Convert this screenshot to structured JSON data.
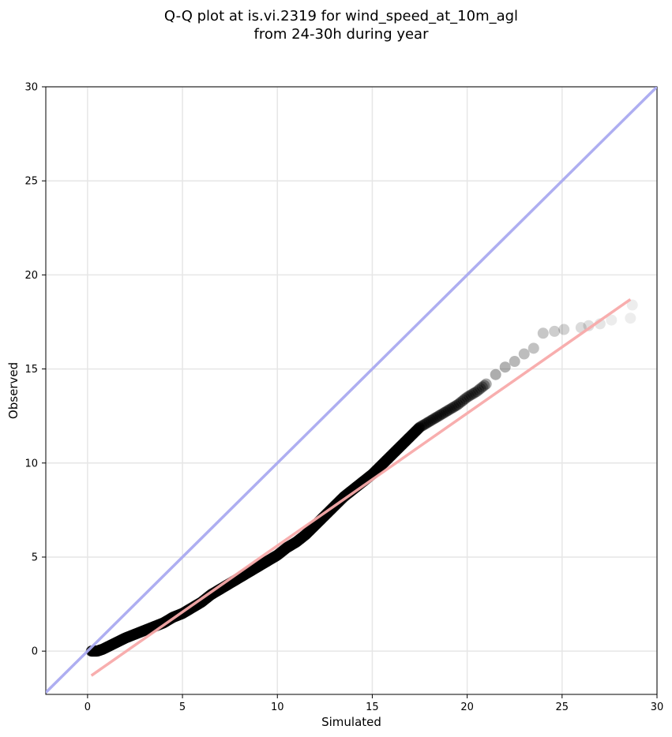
{
  "chart_data": {
    "type": "scatter",
    "title": "Q-Q plot at is.vi.2319 for wind_speed_at_10m_agl",
    "subtitle": "from 24-30h during year",
    "xlabel": "Simulated",
    "ylabel": "Observed",
    "xlim": [
      -2.2,
      30
    ],
    "ylim": [
      -2.3,
      30
    ],
    "x_ticks": [
      0,
      5,
      10,
      15,
      20,
      25,
      30
    ],
    "y_ticks": [
      0,
      5,
      10,
      15,
      20,
      25,
      30
    ],
    "x_tick_labels": [
      "0",
      "5",
      "10",
      "15",
      "20",
      "25",
      "30"
    ],
    "y_tick_labels": [
      "0",
      "5",
      "10",
      "15",
      "20",
      "25",
      "30"
    ],
    "grid": true,
    "quantile_points": {
      "x": [
        0.2,
        0.5,
        0.8,
        1.2,
        1.6,
        2.0,
        2.5,
        3.0,
        3.5,
        4.0,
        4.5,
        5.0,
        5.5,
        6.0,
        6.5,
        7.0,
        7.5,
        8.0,
        8.5,
        9.0,
        9.5,
        10.0,
        10.5,
        11.0,
        11.5,
        12.0,
        12.5,
        13.0,
        13.5,
        14.0,
        14.5,
        15.0,
        15.5,
        16.0,
        16.5,
        17.0,
        17.5,
        18.0,
        18.5,
        19.0,
        19.5,
        20.0,
        20.5,
        21.0,
        21.5,
        22.0,
        22.5,
        23.0,
        23.5,
        24.0,
        24.6,
        25.1,
        26.0,
        26.4,
        27.0,
        27.6,
        28.6,
        28.7
      ],
      "y": [
        0.0,
        0.0,
        0.1,
        0.3,
        0.5,
        0.7,
        0.9,
        1.1,
        1.3,
        1.5,
        1.8,
        2.0,
        2.3,
        2.6,
        3.0,
        3.3,
        3.6,
        3.9,
        4.2,
        4.5,
        4.8,
        5.1,
        5.5,
        5.8,
        6.2,
        6.7,
        7.2,
        7.7,
        8.2,
        8.6,
        9.0,
        9.4,
        9.9,
        10.4,
        10.9,
        11.4,
        11.9,
        12.2,
        12.5,
        12.8,
        13.1,
        13.5,
        13.8,
        14.2,
        14.7,
        15.1,
        15.4,
        15.8,
        16.1,
        16.9,
        17.0,
        17.1,
        17.2,
        17.3,
        17.4,
        17.6,
        17.7,
        18.4
      ],
      "color": "#000000"
    },
    "series": [
      {
        "type": "line",
        "x": [
          -2.2,
          30
        ],
        "y": [
          -2.2,
          30
        ],
        "color": "#aaaaf0"
      },
      {
        "type": "line",
        "x": [
          0.2,
          28.6
        ],
        "y": [
          -1.3,
          18.7
        ],
        "color": "#f8aaaa"
      }
    ]
  }
}
